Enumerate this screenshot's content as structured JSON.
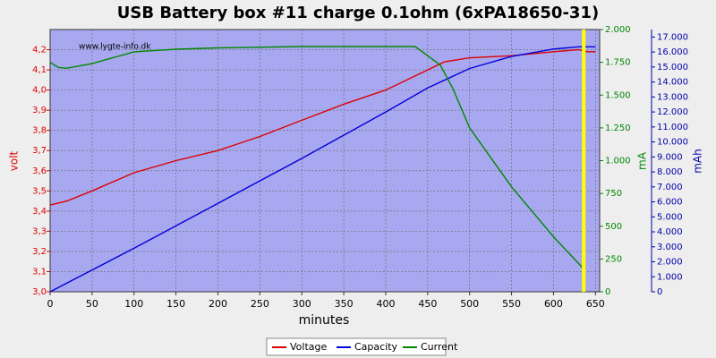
{
  "chart_data": {
    "type": "line",
    "title": "USB Battery box #11 charge 0.1ohm (6xPA18650-31)",
    "watermark": "www.lygte-info.dk",
    "xlabel": "minutes",
    "ylabel": "volt",
    "y2label": "mA",
    "y3label": "mAh",
    "xlim": [
      0,
      655
    ],
    "xticks": [
      0,
      50,
      100,
      150,
      200,
      250,
      300,
      350,
      400,
      450,
      500,
      550,
      600,
      650
    ],
    "ylim": [
      3.0,
      4.3
    ],
    "yticks": [
      {
        "value": 3.0,
        "label": "3,0"
      },
      {
        "value": 3.1,
        "label": "3,1"
      },
      {
        "value": 3.2,
        "label": "3,2"
      },
      {
        "value": 3.3,
        "label": "3,3"
      },
      {
        "value": 3.4,
        "label": "3,4"
      },
      {
        "value": 3.5,
        "label": "3,5"
      },
      {
        "value": 3.6,
        "label": "3,6"
      },
      {
        "value": 3.7,
        "label": "3,7"
      },
      {
        "value": 3.8,
        "label": "3,8"
      },
      {
        "value": 3.9,
        "label": "3,9"
      },
      {
        "value": 4.0,
        "label": "4,0"
      },
      {
        "value": 4.1,
        "label": "4,1"
      },
      {
        "value": 4.2,
        "label": "4,2"
      }
    ],
    "y2lim": [
      0,
      2000
    ],
    "y2ticks": [
      0,
      250,
      500,
      750,
      {
        "value": 1000,
        "label": "1.000"
      },
      {
        "value": 1250,
        "label": "1.250"
      },
      {
        "value": 1500,
        "label": "1.500"
      },
      {
        "value": 1750,
        "label": "1.750"
      },
      {
        "value": 2000,
        "label": "2.000"
      }
    ],
    "y3lim": [
      0,
      17500
    ],
    "y3ticks": [
      0,
      {
        "value": 1000,
        "label": "1.000"
      },
      {
        "value": 2000,
        "label": "2.000"
      },
      {
        "value": 3000,
        "label": "3.000"
      },
      {
        "value": 4000,
        "label": "4.000"
      },
      {
        "value": 5000,
        "label": "5.000"
      },
      {
        "value": 6000,
        "label": "6.000"
      },
      {
        "value": 7000,
        "label": "7.000"
      },
      {
        "value": 8000,
        "label": "8.000"
      },
      {
        "value": 9000,
        "label": "9.000"
      },
      {
        "value": 10000,
        "label": "10.000"
      },
      {
        "value": 11000,
        "label": "11.000"
      },
      {
        "value": 12000,
        "label": "12.000"
      },
      {
        "value": 13000,
        "label": "13.000"
      },
      {
        "value": 14000,
        "label": "14.000"
      },
      {
        "value": 15000,
        "label": "15.000"
      },
      {
        "value": 16000,
        "label": "16.000"
      },
      {
        "value": 17000,
        "label": "17.000"
      }
    ],
    "grid": true,
    "vline_x": 636,
    "vline_color": "#ffff00",
    "series": [
      {
        "name": "Voltage",
        "color": "#dd0000",
        "axis": "y",
        "x": [
          0,
          20,
          50,
          100,
          150,
          200,
          250,
          300,
          350,
          400,
          450,
          470,
          500,
          550,
          600,
          630,
          640,
          650
        ],
        "values": [
          3.43,
          3.45,
          3.5,
          3.59,
          3.65,
          3.7,
          3.77,
          3.85,
          3.93,
          4.0,
          4.1,
          4.14,
          4.16,
          4.17,
          4.19,
          4.2,
          4.19,
          4.19
        ]
      },
      {
        "name": "Capacity",
        "color": "#0000dd",
        "axis": "y3",
        "x": [
          0,
          100,
          200,
          300,
          400,
          450,
          500,
          550,
          600,
          630,
          650
        ],
        "values": [
          0,
          2900,
          5900,
          8900,
          12000,
          13600,
          14900,
          15700,
          16200,
          16350,
          16350
        ]
      },
      {
        "name": "Current",
        "color": "#008800",
        "axis": "y2",
        "x": [
          0,
          10,
          20,
          50,
          100,
          150,
          200,
          300,
          435,
          465,
          480,
          500,
          550,
          600,
          635,
          637
        ],
        "values": [
          1750,
          1710,
          1705,
          1740,
          1830,
          1850,
          1860,
          1870,
          1870,
          1730,
          1550,
          1250,
          800,
          420,
          180,
          0
        ]
      }
    ]
  }
}
